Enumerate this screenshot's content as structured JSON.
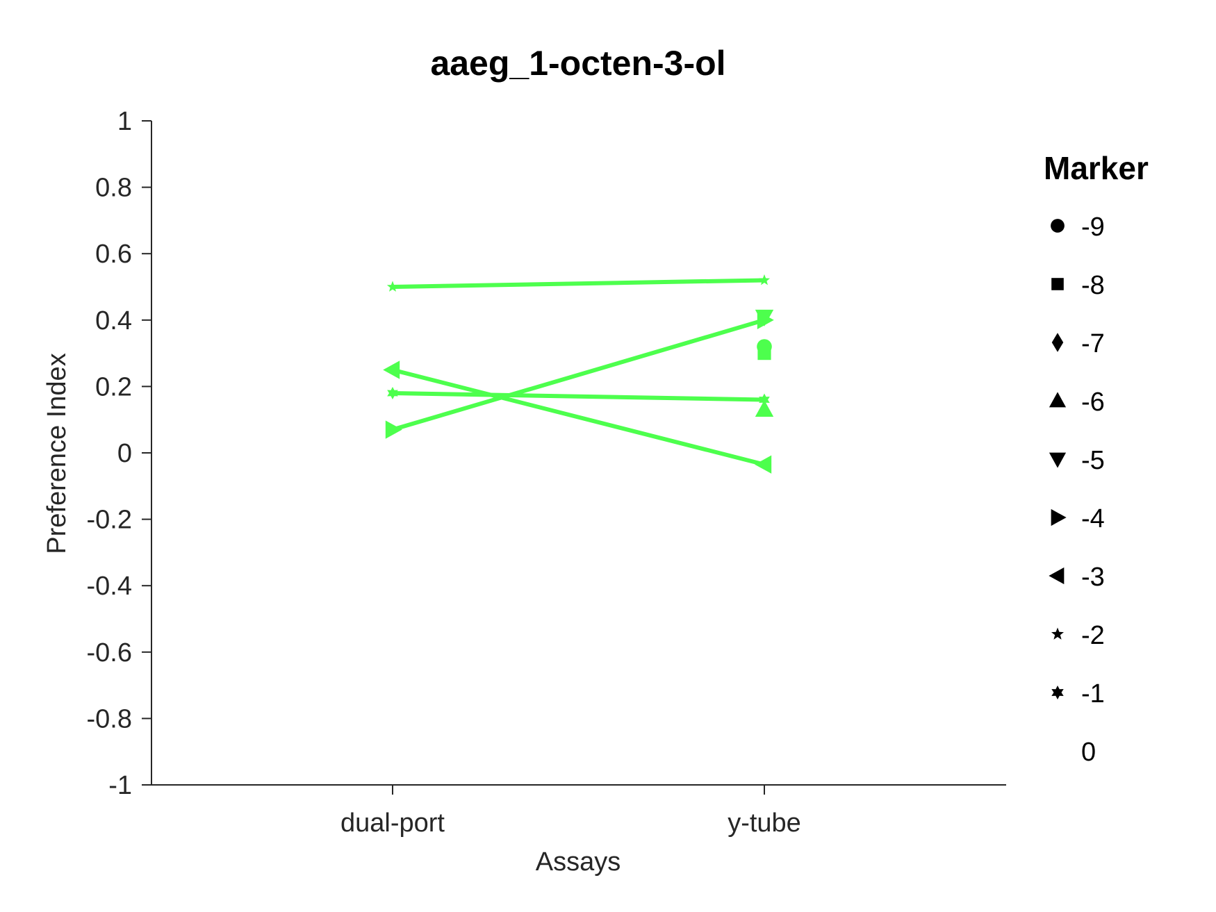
{
  "chart_data": {
    "type": "line",
    "title": "aaeg_1-octen-3-ol",
    "xlabel": "Assays",
    "ylabel": "Preference Index",
    "categories": [
      "dual-port",
      "y-tube"
    ],
    "ylim": [
      -1,
      1
    ],
    "yticks": [
      1,
      0.8,
      0.6,
      0.4,
      0.2,
      0,
      -0.2,
      -0.4,
      -0.6,
      -0.8,
      -1
    ],
    "ytick_labels": [
      "1",
      "0.8",
      "0.6",
      "0.4",
      "0.2",
      "0",
      "-0.2",
      "-0.4",
      "-0.6",
      "-0.8",
      "-1"
    ],
    "grid": false,
    "legend_position": "right",
    "series_color": "#4dff4d",
    "series": [
      {
        "marker": "star",
        "values": [
          0.5,
          0.52
        ]
      },
      {
        "marker": "triangle-left",
        "values": [
          0.25,
          -0.035
        ]
      },
      {
        "marker": "hexagram",
        "values": [
          0.18,
          0.16
        ]
      },
      {
        "marker": "triangle-right",
        "values": [
          0.07,
          0.4
        ]
      },
      {
        "marker": "triangle-down",
        "values": [
          null,
          0.41
        ]
      },
      {
        "marker": "circle",
        "values": [
          null,
          0.32
        ]
      },
      {
        "marker": "square",
        "values": [
          null,
          0.3
        ]
      },
      {
        "marker": "triangle-up",
        "values": [
          null,
          0.13
        ]
      }
    ],
    "legend": {
      "title": "Marker",
      "entries": [
        {
          "marker": "circle",
          "label": "-9"
        },
        {
          "marker": "square",
          "label": "-8"
        },
        {
          "marker": "diamond",
          "label": "-7"
        },
        {
          "marker": "triangle-up",
          "label": "-6"
        },
        {
          "marker": "triangle-down",
          "label": "-5"
        },
        {
          "marker": "triangle-right",
          "label": "-4"
        },
        {
          "marker": "triangle-left",
          "label": "-3"
        },
        {
          "marker": "star",
          "label": "-2"
        },
        {
          "marker": "hexagram",
          "label": "-1"
        },
        {
          "marker": "none",
          "label": "0"
        }
      ]
    }
  }
}
